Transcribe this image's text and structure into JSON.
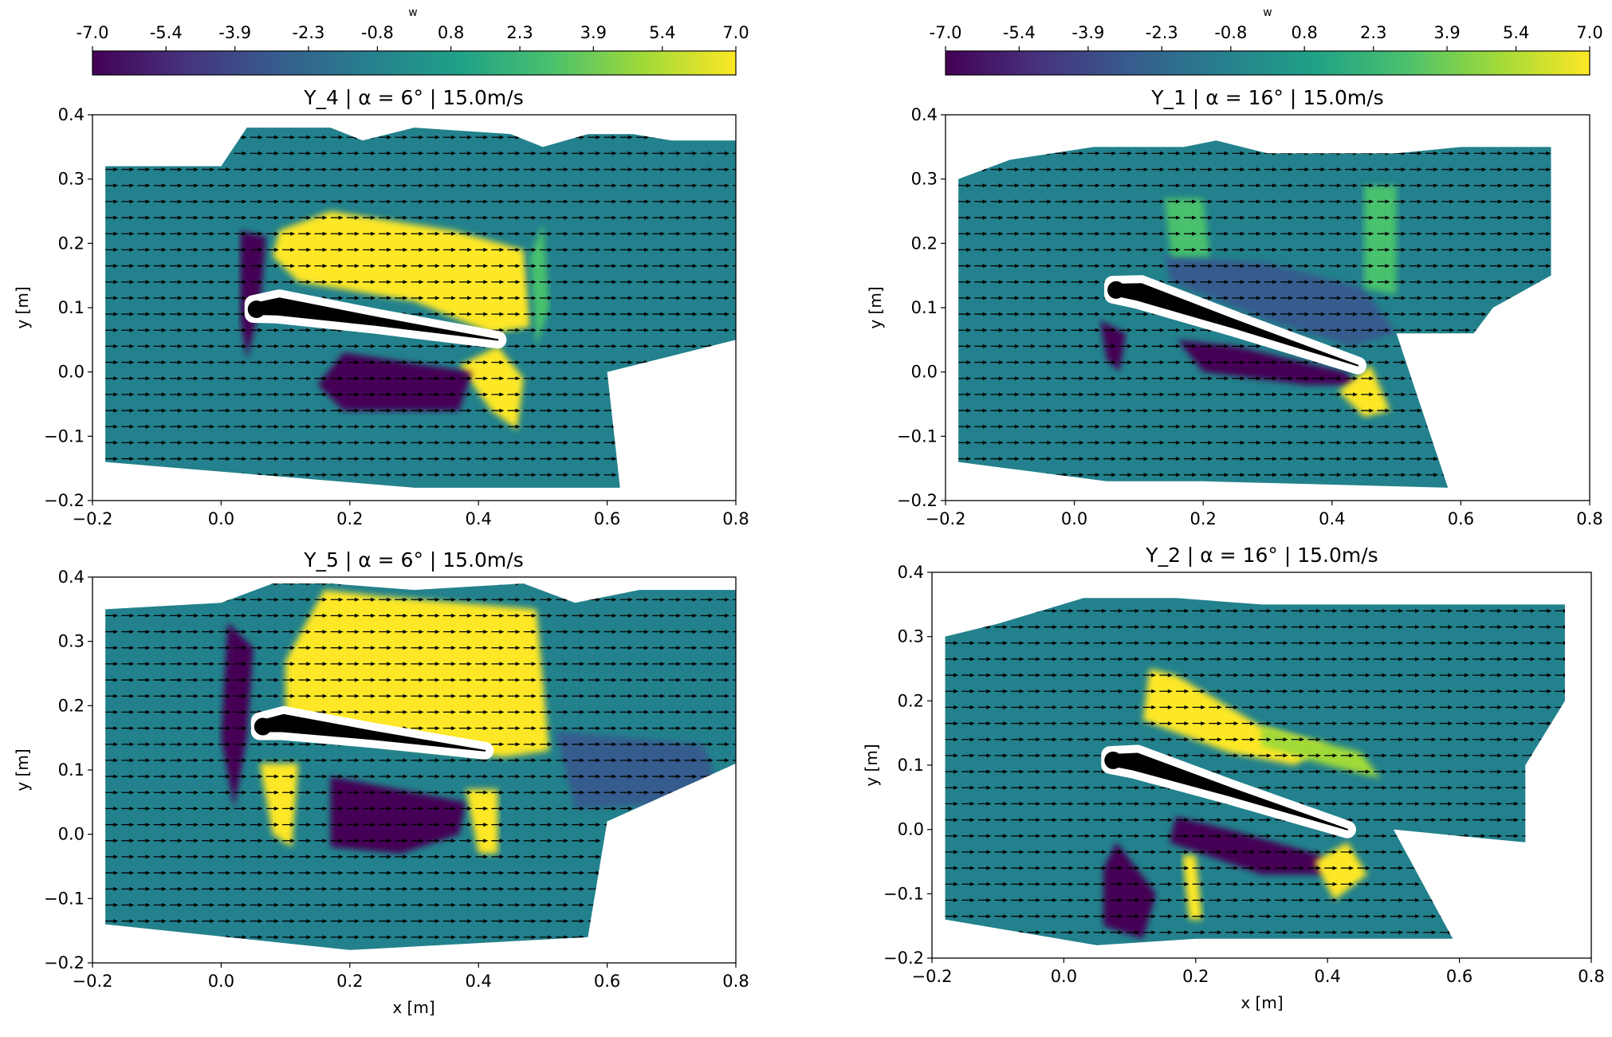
{
  "colormap": [
    "#440154",
    "#46327e",
    "#365c8d",
    "#277f8e",
    "#1fa187",
    "#4ac16d",
    "#a0da39",
    "#fde725"
  ],
  "colors": {
    "field_background": "#22818c",
    "positive_region": "#fde725",
    "negative_region": "#440154",
    "mid_positive_region": "#5ec962",
    "mid_negative_region": "#3b528b",
    "arrow": "#000000",
    "airfoil": "#000000"
  },
  "colorbar": {
    "label": "w",
    "range": [
      -7.0,
      7.0
    ],
    "ticks": [
      "-7.0",
      "-5.4",
      "-3.9",
      "-2.3",
      "-0.8",
      "0.8",
      "2.3",
      "3.9",
      "5.4",
      "7.0"
    ]
  },
  "chart_data": [
    {
      "type": "heatmap",
      "title": "Y_4 | α = 6° | 15.0m/s",
      "xlabel": "",
      "ylabel": "y [m]",
      "xlim": [
        -0.2,
        0.8
      ],
      "ylim": [
        -0.2,
        0.4
      ],
      "xticks": [
        "−0.2",
        "0.0",
        "0.2",
        "0.4",
        "0.6",
        "0.8"
      ],
      "yticks": [
        "−0.2",
        "−0.1",
        "0.0",
        "0.1",
        "0.2",
        "0.3",
        "0.4"
      ],
      "angle_of_attack_deg": 6,
      "airfoil": {
        "le": [
          0.05,
          0.1
        ],
        "te": [
          0.43,
          0.05
        ]
      },
      "field_outline": [
        [
          -0.18,
          -0.12
        ],
        [
          -0.18,
          0.32
        ],
        [
          0.0,
          0.32
        ],
        [
          0.04,
          0.38
        ],
        [
          0.17,
          0.38
        ],
        [
          0.22,
          0.36
        ],
        [
          0.3,
          0.38
        ],
        [
          0.45,
          0.37
        ],
        [
          0.5,
          0.35
        ],
        [
          0.57,
          0.37
        ],
        [
          0.64,
          0.37
        ],
        [
          0.7,
          0.36
        ],
        [
          0.8,
          0.36
        ],
        [
          0.8,
          0.05
        ],
        [
          0.6,
          0.0
        ],
        [
          0.62,
          -0.18
        ],
        [
          0.3,
          -0.18
        ],
        [
          -0.18,
          -0.14
        ]
      ],
      "regions": [
        {
          "value": 7.0,
          "polygon": [
            [
              0.09,
              0.22
            ],
            [
              0.17,
              0.25
            ],
            [
              0.36,
              0.22
            ],
            [
              0.47,
              0.19
            ],
            [
              0.48,
              0.07
            ],
            [
              0.42,
              0.06
            ],
            [
              0.3,
              0.11
            ],
            [
              0.12,
              0.14
            ],
            [
              0.08,
              0.18
            ]
          ]
        },
        {
          "value": 7.0,
          "polygon": [
            [
              0.37,
              0.01
            ],
            [
              0.43,
              0.04
            ],
            [
              0.47,
              -0.01
            ],
            [
              0.46,
              -0.09
            ],
            [
              0.42,
              -0.06
            ]
          ]
        },
        {
          "value": -7.0,
          "polygon": [
            [
              0.19,
              0.03
            ],
            [
              0.39,
              0.0
            ],
            [
              0.37,
              -0.06
            ],
            [
              0.19,
              -0.06
            ],
            [
              0.15,
              -0.02
            ]
          ]
        },
        {
          "value": -7.0,
          "polygon": [
            [
              0.03,
              0.22
            ],
            [
              0.07,
              0.21
            ],
            [
              0.06,
              0.1
            ],
            [
              0.04,
              0.02
            ],
            [
              0.03,
              0.08
            ]
          ]
        },
        {
          "value": 3.5,
          "polygon": [
            [
              0.48,
              0.18
            ],
            [
              0.5,
              0.23
            ],
            [
              0.51,
              0.1
            ],
            [
              0.49,
              0.04
            ]
          ]
        }
      ]
    },
    {
      "type": "heatmap",
      "title": "Y_1 | α = 16° | 15.0m/s",
      "xlabel": "",
      "ylabel": "y [m]",
      "xlim": [
        -0.2,
        0.8
      ],
      "ylim": [
        -0.2,
        0.4
      ],
      "xticks": [
        "−0.2",
        "0.0",
        "0.2",
        "0.4",
        "0.6",
        "0.8"
      ],
      "yticks": [
        "−0.2",
        "−0.1",
        "0.0",
        "0.1",
        "0.2",
        "0.3",
        "0.4"
      ],
      "angle_of_attack_deg": 16,
      "airfoil": {
        "le": [
          0.06,
          0.13
        ],
        "te": [
          0.44,
          0.01
        ]
      },
      "field_outline": [
        [
          -0.18,
          -0.12
        ],
        [
          -0.18,
          0.3
        ],
        [
          -0.1,
          0.33
        ],
        [
          0.03,
          0.35
        ],
        [
          0.17,
          0.35
        ],
        [
          0.22,
          0.36
        ],
        [
          0.3,
          0.34
        ],
        [
          0.5,
          0.34
        ],
        [
          0.6,
          0.35
        ],
        [
          0.74,
          0.35
        ],
        [
          0.74,
          0.15
        ],
        [
          0.65,
          0.1
        ],
        [
          0.62,
          0.06
        ],
        [
          0.5,
          0.06
        ],
        [
          0.58,
          -0.18
        ],
        [
          0.2,
          -0.17
        ],
        [
          0.05,
          -0.17
        ],
        [
          -0.18,
          -0.14
        ]
      ],
      "regions": [
        {
          "value": -2.5,
          "polygon": [
            [
              0.14,
              0.18
            ],
            [
              0.3,
              0.17
            ],
            [
              0.45,
              0.13
            ],
            [
              0.5,
              0.06
            ],
            [
              0.43,
              0.04
            ],
            [
              0.3,
              0.08
            ],
            [
              0.15,
              0.14
            ]
          ]
        },
        {
          "value": -7.0,
          "polygon": [
            [
              0.16,
              0.05
            ],
            [
              0.25,
              0.04
            ],
            [
              0.42,
              0.0
            ],
            [
              0.44,
              -0.02
            ],
            [
              0.36,
              -0.02
            ],
            [
              0.2,
              0.0
            ]
          ]
        },
        {
          "value": -7.0,
          "polygon": [
            [
              0.04,
              0.08
            ],
            [
              0.08,
              0.06
            ],
            [
              0.07,
              0.0
            ],
            [
              0.05,
              0.02
            ]
          ]
        },
        {
          "value": 7.0,
          "polygon": [
            [
              0.41,
              -0.03
            ],
            [
              0.46,
              0.01
            ],
            [
              0.49,
              -0.06
            ],
            [
              0.45,
              -0.07
            ]
          ]
        },
        {
          "value": 3.5,
          "polygon": [
            [
              0.14,
              0.27
            ],
            [
              0.2,
              0.27
            ],
            [
              0.21,
              0.18
            ],
            [
              0.15,
              0.18
            ]
          ]
        },
        {
          "value": 3.5,
          "polygon": [
            [
              0.45,
              0.29
            ],
            [
              0.5,
              0.29
            ],
            [
              0.5,
              0.12
            ],
            [
              0.45,
              0.13
            ]
          ]
        }
      ]
    },
    {
      "type": "heatmap",
      "title": "Y_5 | α = 6° | 15.0m/s",
      "xlabel": "x [m]",
      "ylabel": "y [m]",
      "xlim": [
        -0.2,
        0.8
      ],
      "ylim": [
        -0.2,
        0.4
      ],
      "xticks": [
        "−0.2",
        "0.0",
        "0.2",
        "0.4",
        "0.6",
        "0.8"
      ],
      "yticks": [
        "−0.2",
        "−0.1",
        "0.0",
        "0.1",
        "0.2",
        "0.3",
        "0.4"
      ],
      "angle_of_attack_deg": 6,
      "airfoil": {
        "le": [
          0.06,
          0.17
        ],
        "te": [
          0.41,
          0.13
        ]
      },
      "field_outline": [
        [
          -0.18,
          -0.12
        ],
        [
          -0.18,
          0.35
        ],
        [
          0.0,
          0.36
        ],
        [
          0.08,
          0.39
        ],
        [
          0.17,
          0.39
        ],
        [
          0.3,
          0.38
        ],
        [
          0.47,
          0.39
        ],
        [
          0.55,
          0.36
        ],
        [
          0.65,
          0.38
        ],
        [
          0.8,
          0.38
        ],
        [
          0.8,
          0.11
        ],
        [
          0.6,
          0.02
        ],
        [
          0.57,
          -0.16
        ],
        [
          0.2,
          -0.18
        ],
        [
          -0.18,
          -0.14
        ]
      ],
      "regions": [
        {
          "value": 7.0,
          "polygon": [
            [
              0.1,
              0.27
            ],
            [
              0.16,
              0.38
            ],
            [
              0.25,
              0.37
            ],
            [
              0.49,
              0.35
            ],
            [
              0.51,
              0.13
            ],
            [
              0.44,
              0.12
            ],
            [
              0.25,
              0.14
            ],
            [
              0.1,
              0.19
            ]
          ]
        },
        {
          "value": 7.0,
          "polygon": [
            [
              0.06,
              0.11
            ],
            [
              0.12,
              0.11
            ],
            [
              0.11,
              -0.02
            ],
            [
              0.08,
              0.0
            ]
          ]
        },
        {
          "value": 7.0,
          "polygon": [
            [
              0.38,
              0.07
            ],
            [
              0.43,
              0.07
            ],
            [
              0.43,
              -0.03
            ],
            [
              0.4,
              -0.03
            ]
          ]
        },
        {
          "value": -7.0,
          "polygon": [
            [
              0.17,
              0.09
            ],
            [
              0.38,
              0.05
            ],
            [
              0.37,
              0.0
            ],
            [
              0.28,
              -0.03
            ],
            [
              0.17,
              -0.02
            ]
          ]
        },
        {
          "value": -7.0,
          "polygon": [
            [
              0.01,
              0.33
            ],
            [
              0.05,
              0.29
            ],
            [
              0.04,
              0.15
            ],
            [
              0.02,
              0.04
            ],
            [
              0.0,
              0.15
            ]
          ]
        },
        {
          "value": -2.5,
          "polygon": [
            [
              0.52,
              0.16
            ],
            [
              0.75,
              0.14
            ],
            [
              0.78,
              0.05
            ],
            [
              0.55,
              0.04
            ]
          ]
        }
      ]
    },
    {
      "type": "heatmap",
      "title": "Y_2 | α = 16° | 15.0m/s",
      "xlabel": "x [m]",
      "ylabel": "y [m]",
      "xlim": [
        -0.2,
        0.8
      ],
      "ylim": [
        -0.2,
        0.4
      ],
      "xticks": [
        "−0.2",
        "0.0",
        "0.2",
        "0.4",
        "0.6",
        "0.8"
      ],
      "yticks": [
        "−0.2",
        "−0.1",
        "0.0",
        "0.1",
        "0.2",
        "0.3",
        "0.4"
      ],
      "angle_of_attack_deg": 16,
      "airfoil": {
        "le": [
          0.07,
          0.11
        ],
        "te": [
          0.43,
          0.0
        ]
      },
      "field_outline": [
        [
          -0.18,
          -0.12
        ],
        [
          -0.18,
          0.3
        ],
        [
          -0.1,
          0.32
        ],
        [
          0.03,
          0.36
        ],
        [
          0.17,
          0.36
        ],
        [
          0.3,
          0.35
        ],
        [
          0.5,
          0.35
        ],
        [
          0.6,
          0.35
        ],
        [
          0.76,
          0.35
        ],
        [
          0.76,
          0.2
        ],
        [
          0.7,
          0.1
        ],
        [
          0.7,
          -0.02
        ],
        [
          0.6,
          -0.01
        ],
        [
          0.5,
          0.0
        ],
        [
          0.59,
          -0.17
        ],
        [
          0.2,
          -0.17
        ],
        [
          0.05,
          -0.18
        ],
        [
          -0.18,
          -0.14
        ]
      ],
      "regions": [
        {
          "value": 7.0,
          "polygon": [
            [
              0.13,
              0.25
            ],
            [
              0.17,
              0.24
            ],
            [
              0.3,
              0.16
            ],
            [
              0.4,
              0.13
            ],
            [
              0.35,
              0.1
            ],
            [
              0.25,
              0.12
            ],
            [
              0.12,
              0.17
            ]
          ]
        },
        {
          "value": 4.0,
          "polygon": [
            [
              0.3,
              0.16
            ],
            [
              0.45,
              0.12
            ],
            [
              0.48,
              0.08
            ],
            [
              0.4,
              0.1
            ],
            [
              0.3,
              0.13
            ]
          ]
        },
        {
          "value": -7.0,
          "polygon": [
            [
              0.17,
              0.02
            ],
            [
              0.25,
              0.0
            ],
            [
              0.39,
              -0.04
            ],
            [
              0.4,
              -0.07
            ],
            [
              0.3,
              -0.07
            ],
            [
              0.16,
              -0.02
            ]
          ]
        },
        {
          "value": -7.0,
          "polygon": [
            [
              0.08,
              -0.02
            ],
            [
              0.14,
              -0.1
            ],
            [
              0.12,
              -0.17
            ],
            [
              0.06,
              -0.15
            ],
            [
              0.06,
              -0.06
            ]
          ]
        },
        {
          "value": 7.0,
          "polygon": [
            [
              0.38,
              -0.05
            ],
            [
              0.43,
              -0.02
            ],
            [
              0.46,
              -0.07
            ],
            [
              0.41,
              -0.11
            ]
          ]
        },
        {
          "value": 7.0,
          "polygon": [
            [
              0.18,
              -0.04
            ],
            [
              0.2,
              -0.04
            ],
            [
              0.21,
              -0.14
            ],
            [
              0.19,
              -0.14
            ]
          ]
        }
      ]
    }
  ]
}
